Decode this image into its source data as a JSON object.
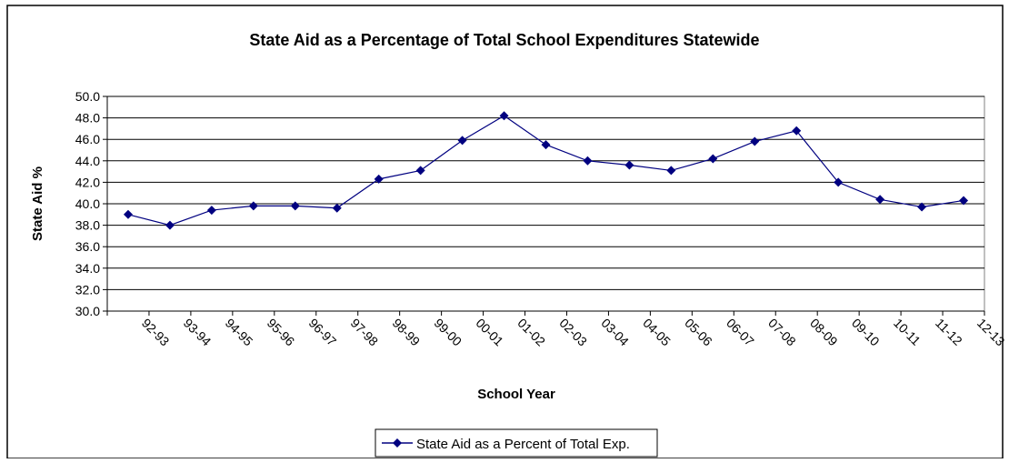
{
  "chart_data": {
    "type": "line",
    "title": "State Aid as a Percentage of Total School Expenditures Statewide",
    "xlabel": "School Year",
    "ylabel": "State Aid %",
    "ylim": [
      30,
      50
    ],
    "ytick_step": 2,
    "ytick_labels": [
      "30.0",
      "32.0",
      "34.0",
      "36.0",
      "38.0",
      "40.0",
      "42.0",
      "44.0",
      "46.0",
      "48.0",
      "50.0"
    ],
    "grid": true,
    "legend_position": "bottom",
    "categories": [
      "92-93",
      "93-94",
      "94-95",
      "95-96",
      "96-97",
      "97-98",
      "98-99",
      "99-00",
      "00-01",
      "01-02",
      "02-03",
      "03-04",
      "04-05",
      "05-06",
      "06-07",
      "07-08",
      "08-09",
      "09-10",
      "10-11",
      "11-12",
      "12-13"
    ],
    "series": [
      {
        "name": "State Aid as a Percent of Total Exp.",
        "color": "#000080",
        "marker": "diamond",
        "values": [
          39.0,
          38.0,
          39.4,
          39.8,
          39.8,
          39.6,
          42.3,
          43.1,
          45.9,
          48.2,
          45.5,
          44.0,
          43.6,
          43.1,
          44.2,
          45.8,
          46.8,
          42.0,
          40.4,
          39.7,
          40.3
        ]
      }
    ]
  }
}
